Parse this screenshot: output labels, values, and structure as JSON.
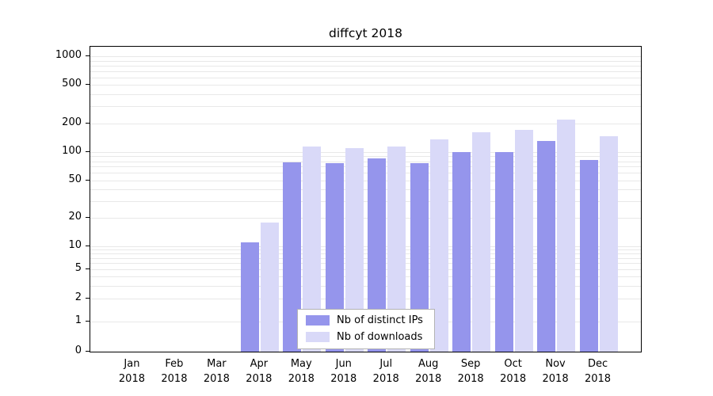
{
  "colors": {
    "ips": "#9595ec",
    "downloads": "#d9d9f8",
    "grid": "#e8e8e8",
    "axis": "#000000"
  },
  "chart_data": {
    "type": "bar",
    "title": "diffcyt 2018",
    "categories": [
      "Jan 2018",
      "Feb 2018",
      "Mar 2018",
      "Apr 2018",
      "May 2018",
      "Jun 2018",
      "Jul 2018",
      "Aug 2018",
      "Sep 2018",
      "Oct 2018",
      "Nov 2018",
      "Dec 2018"
    ],
    "series": [
      {
        "name": "Nb of distinct IPs",
        "key": "ips",
        "values": [
          0,
          0,
          0,
          11,
          78,
          77,
          85,
          77,
          100,
          100,
          130,
          82
        ]
      },
      {
        "name": "Nb of downloads",
        "key": "downloads",
        "values": [
          0,
          0,
          0,
          18,
          115,
          110,
          115,
          135,
          160,
          170,
          220,
          145
        ]
      }
    ],
    "xlabel": "",
    "ylabel": "",
    "yscale": "log",
    "yticks": [
      0,
      1,
      2,
      5,
      10,
      20,
      50,
      100,
      200,
      500,
      1000
    ],
    "ylim": [
      0,
      1000
    ],
    "grid": "horizontal",
    "legend_position": "lower center"
  }
}
